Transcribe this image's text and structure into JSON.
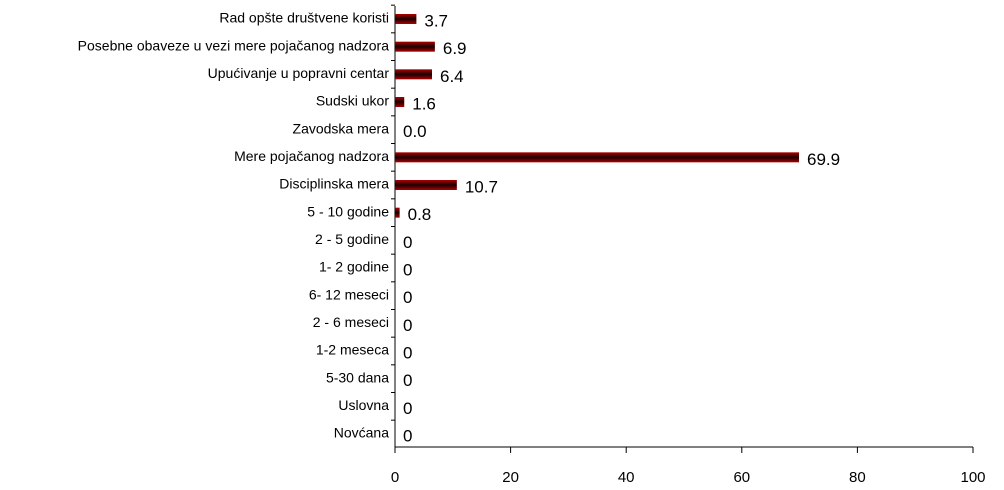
{
  "chart_data": {
    "type": "bar",
    "orientation": "horizontal",
    "categories": [
      "Rad opšte društvene koristi",
      "Posebne obaveze u vezi  mere pojačanog nadzora",
      "Upućivanje u popravni centar",
      "Sudski ukor",
      "Zavodska mera",
      "Mere pojačanog nadzora",
      "Disciplinska mera",
      "5 - 10 godine",
      "2 -  5 godine",
      "1-  2 godine",
      "6- 12 meseci",
      "2 -  6 meseci",
      "1-2 meseca",
      "5-30 dana",
      "Uslovna",
      "Novćana"
    ],
    "values": [
      3.7,
      6.9,
      6.4,
      1.6,
      0,
      69.9,
      10.7,
      0.8,
      0,
      0,
      0,
      0,
      0,
      0,
      0,
      0
    ],
    "value_labels": [
      "3.7",
      "6.9",
      "6.4",
      "1.6",
      "0.0",
      "69.9",
      "10.7",
      "0.8",
      "0",
      "0",
      "0",
      "0",
      "0",
      "0",
      "0",
      "0"
    ],
    "color": "#b00000",
    "xlim": [
      0,
      100
    ],
    "xticks": [
      0,
      20,
      40,
      60,
      80,
      100
    ],
    "grid": false
  }
}
